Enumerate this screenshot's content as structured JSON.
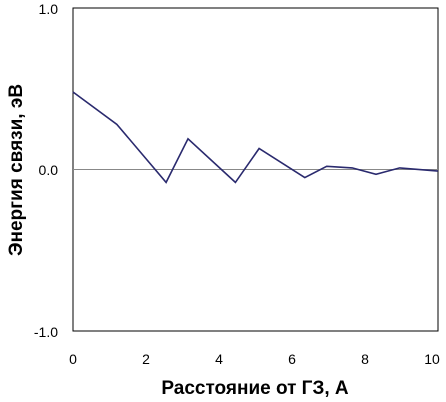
{
  "chart_data": {
    "type": "line",
    "xlabel": "Расстояние от ГЗ, А",
    "ylabel": "Энергия связи, эВ",
    "xlim": [
      0,
      10
    ],
    "ylim": [
      -1.0,
      1.0
    ],
    "x_ticks": [
      "0",
      "2",
      "4",
      "6",
      "8",
      "10"
    ],
    "y_ticks": [
      "1.0",
      "0.0",
      "-1.0"
    ],
    "grid": false,
    "zero_line": true,
    "series": [
      {
        "x": [
          0,
          1.2,
          2.55,
          3.15,
          4.45,
          5.1,
          6.35,
          6.95,
          7.65,
          8.3,
          8.95,
          10
        ],
        "y": [
          0.48,
          0.28,
          -0.08,
          0.19,
          -0.08,
          0.13,
          -0.05,
          0.02,
          0.01,
          -0.03,
          0.01,
          -0.01
        ]
      }
    ],
    "colors": {
      "line": "#2a2a6e",
      "axis": "#000000",
      "zero_line": "#888888"
    }
  }
}
